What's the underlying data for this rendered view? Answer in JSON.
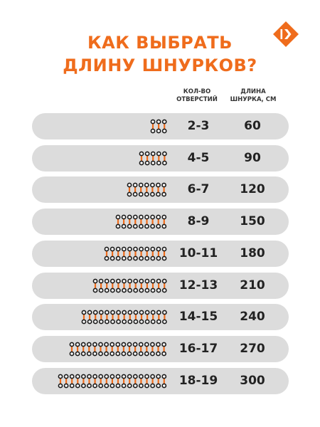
{
  "title": {
    "line1": "КАК ВЫБРАТЬ",
    "line2": "ДЛИНУ ШНУРКОВ?"
  },
  "logo_icon": "brand-logo-icon",
  "colors": {
    "accent": "#ef6c1c",
    "row_bg": "#dcdcdc",
    "text": "#222222",
    "eyelet": "#1a1a1a"
  },
  "headers": {
    "holes_line1": "КОЛ-ВО",
    "holes_line2": "ОТВЕРСТИЙ",
    "length_line1": "ДЛИНА",
    "length_line2": "ШНУРКА, СМ"
  },
  "rows": [
    {
      "holes": "2-3",
      "length": "60",
      "pairs": 3
    },
    {
      "holes": "4-5",
      "length": "90",
      "pairs": 5
    },
    {
      "holes": "6-7",
      "length": "120",
      "pairs": 7
    },
    {
      "holes": "8-9",
      "length": "150",
      "pairs": 9
    },
    {
      "holes": "10-11",
      "length": "180",
      "pairs": 11
    },
    {
      "holes": "12-13",
      "length": "210",
      "pairs": 13
    },
    {
      "holes": "14-15",
      "length": "240",
      "pairs": 15
    },
    {
      "holes": "16-17",
      "length": "270",
      "pairs": 17
    },
    {
      "holes": "18-19",
      "length": "300",
      "pairs": 19
    }
  ]
}
